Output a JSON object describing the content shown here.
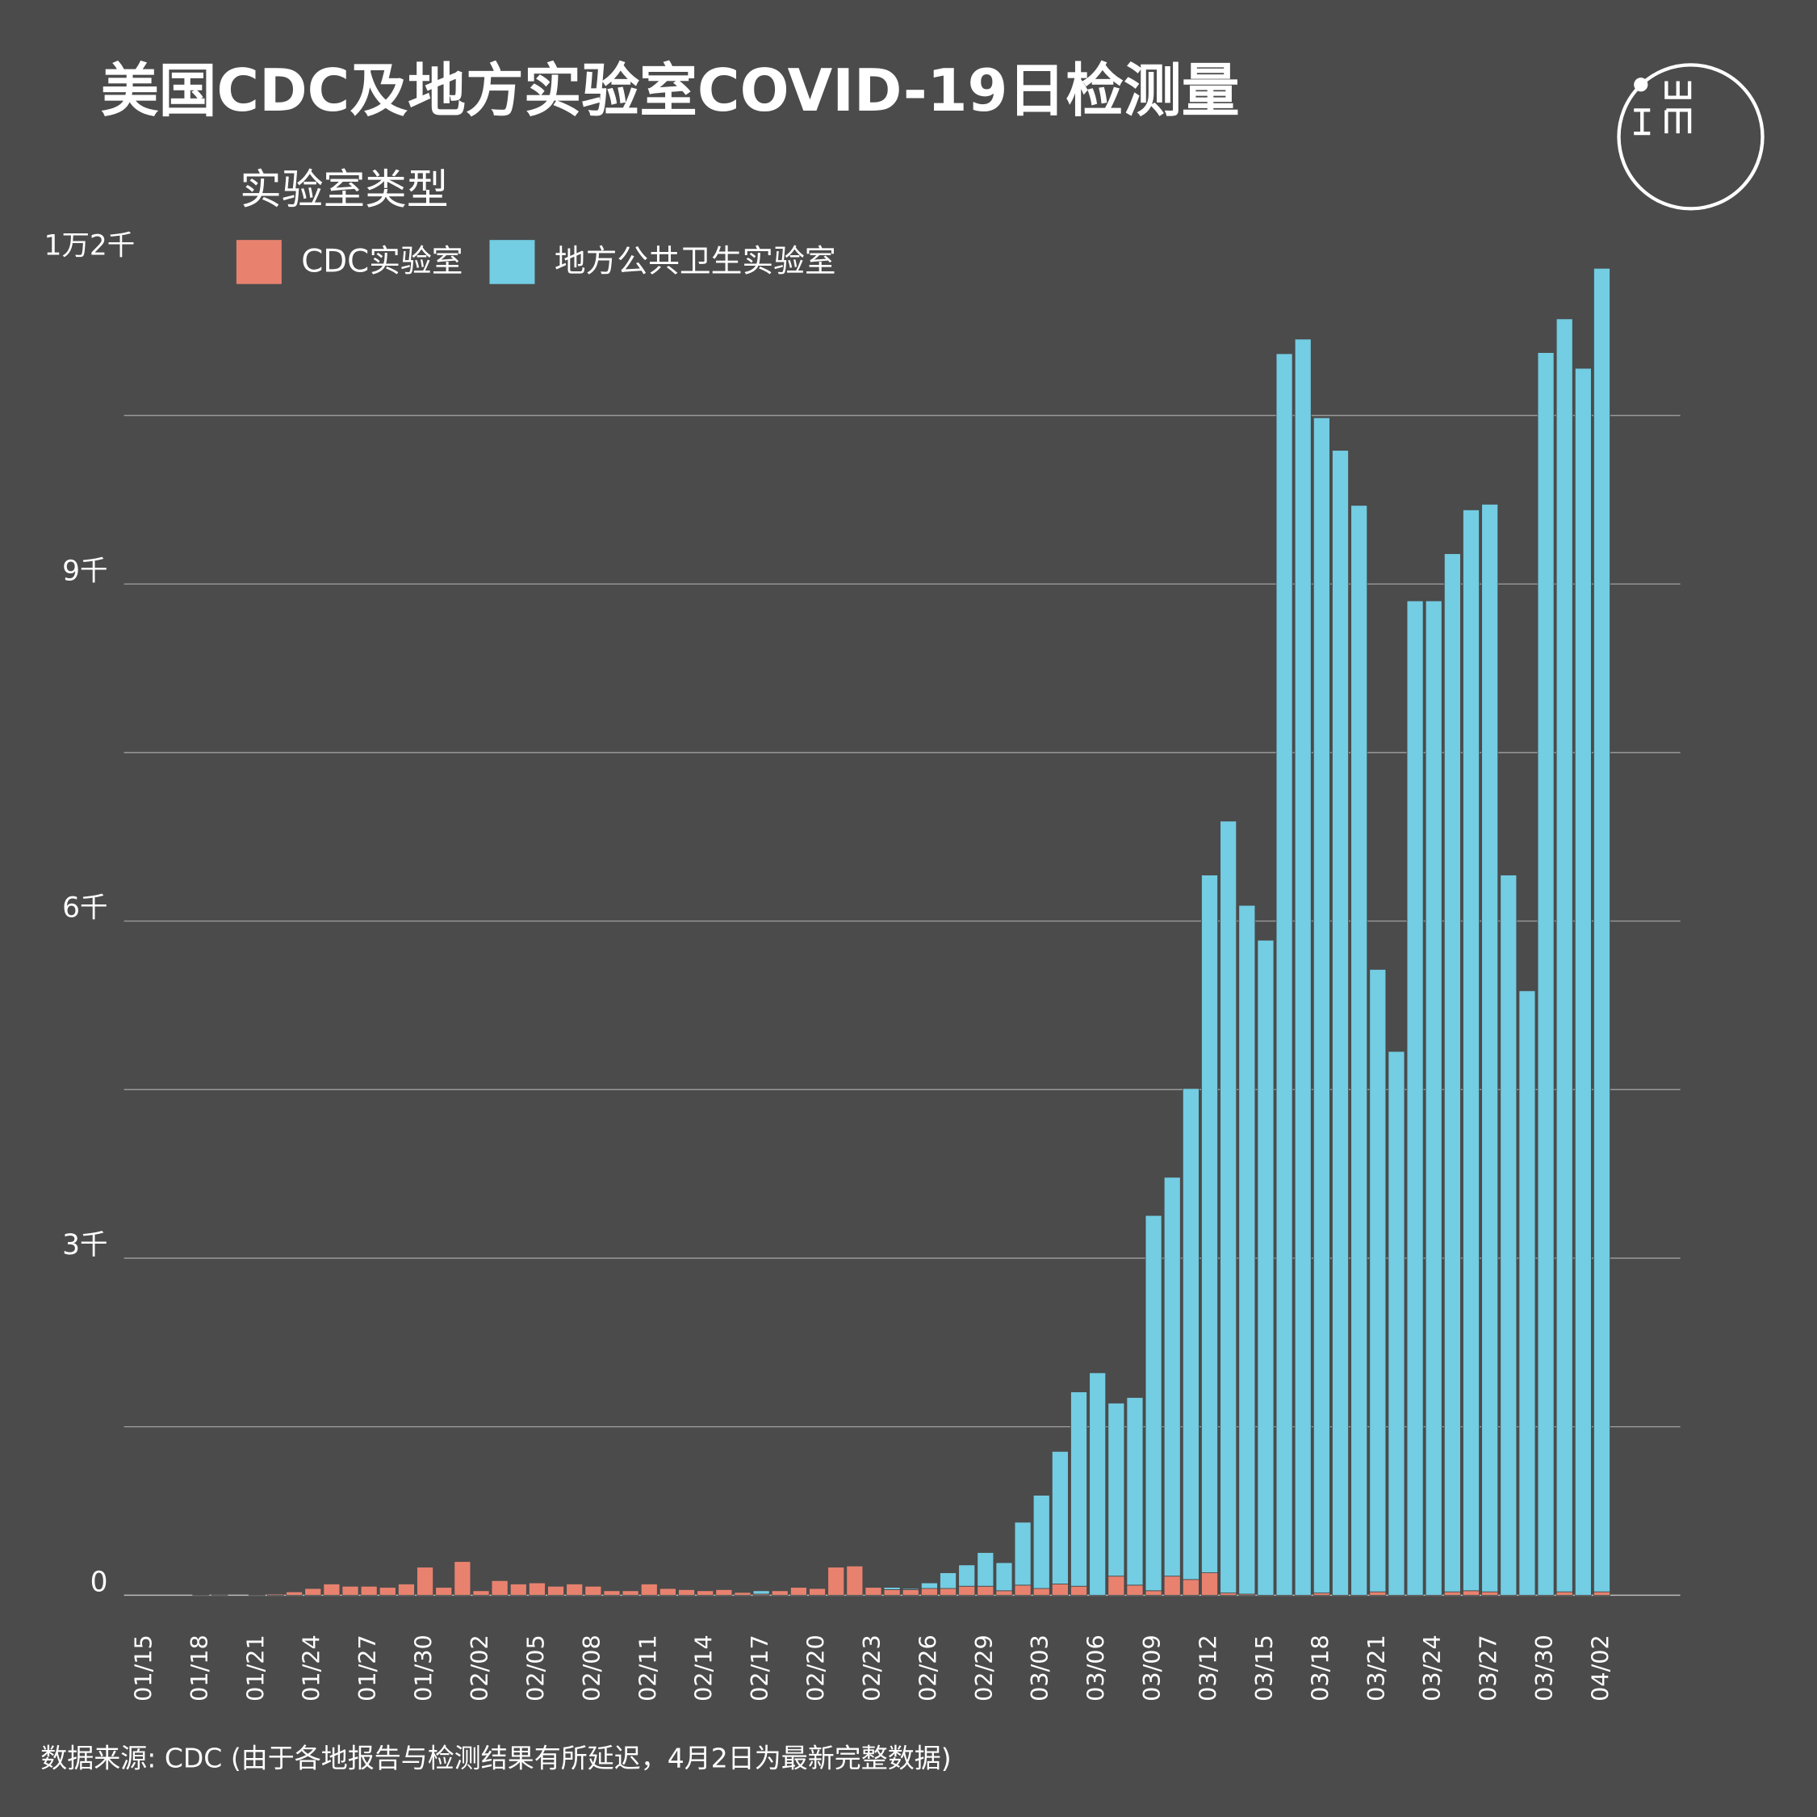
{
  "chart_data": {
    "type": "stacked_bar",
    "title": "美国CDC及地方实验室COVID-19日检测量",
    "legend_title": "实验室类型",
    "source": "数据来源: CDC (由于各地报告与检测结果有所延迟，4月2日为最新完整数据)",
    "categories": [
      "01/15",
      null,
      null,
      "01/18",
      null,
      null,
      "01/21",
      null,
      null,
      "01/24",
      null,
      null,
      "01/27",
      null,
      null,
      "01/30",
      null,
      null,
      "02/02",
      null,
      null,
      "02/05",
      null,
      null,
      "02/08",
      null,
      null,
      "02/11",
      null,
      null,
      "02/14",
      null,
      null,
      "02/17",
      null,
      null,
      "02/20",
      null,
      null,
      "02/23",
      null,
      null,
      "02/26",
      null,
      null,
      "02/29",
      null,
      null,
      "03/03",
      null,
      null,
      "03/06",
      null,
      null,
      "03/09",
      null,
      null,
      "03/12",
      null,
      null,
      "03/15",
      null,
      null,
      "03/18",
      null,
      null,
      "03/21",
      null,
      null,
      "03/24",
      null,
      null,
      "03/27",
      null,
      null,
      "03/30",
      null,
      null,
      "04/02"
    ],
    "series": [
      {
        "name": "CDC实验室",
        "color": "#e8826f",
        "values": [
          0,
          0,
          0,
          4,
          2,
          0,
          4,
          10,
          30,
          60,
          100,
          80,
          80,
          70,
          100,
          250,
          70,
          300,
          40,
          130,
          100,
          110,
          80,
          100,
          80,
          40,
          40,
          100,
          60,
          50,
          40,
          50,
          25,
          10,
          40,
          70,
          60,
          250,
          260,
          70,
          50,
          50,
          60,
          60,
          80,
          80,
          40,
          90,
          60,
          100,
          80,
          0,
          170,
          90,
          40,
          170,
          140,
          200,
          20,
          10,
          0,
          0,
          0,
          20,
          0,
          0,
          30,
          0,
          0,
          0,
          30,
          40,
          30,
          0,
          0,
          0,
          30,
          0,
          30
        ]
      },
      {
        "name": "地方公共卫生实验室",
        "color": "#73cde3",
        "values": [
          0,
          0,
          0,
          0,
          0,
          0,
          0,
          0,
          0,
          0,
          0,
          0,
          0,
          0,
          0,
          0,
          0,
          0,
          0,
          0,
          0,
          0,
          0,
          0,
          0,
          0,
          0,
          0,
          0,
          0,
          0,
          0,
          0,
          30,
          0,
          0,
          0,
          0,
          0,
          0,
          20,
          10,
          50,
          140,
          190,
          300,
          250,
          560,
          830,
          1180,
          1730,
          1980,
          1540,
          1670,
          3340,
          3550,
          4370,
          6210,
          6870,
          6130,
          5830,
          11050,
          11180,
          10460,
          10190,
          9700,
          5540,
          4840,
          8850,
          8850,
          9240,
          9620,
          9680,
          6410,
          5380,
          11060,
          11330,
          10920,
          11780
        ]
      }
    ],
    "ylim": [
      0,
      12000
    ],
    "yticks": [
      0,
      {
        "value": 3000,
        "label": "3千"
      },
      {
        "value": 6000,
        "label": "6千"
      },
      {
        "value": 9000,
        "label": "9千"
      },
      {
        "value": 12000,
        "label": "1万2千"
      }
    ],
    "minor_yticks": [
      1500,
      4500,
      7500,
      10500
    ],
    "grid": true
  }
}
